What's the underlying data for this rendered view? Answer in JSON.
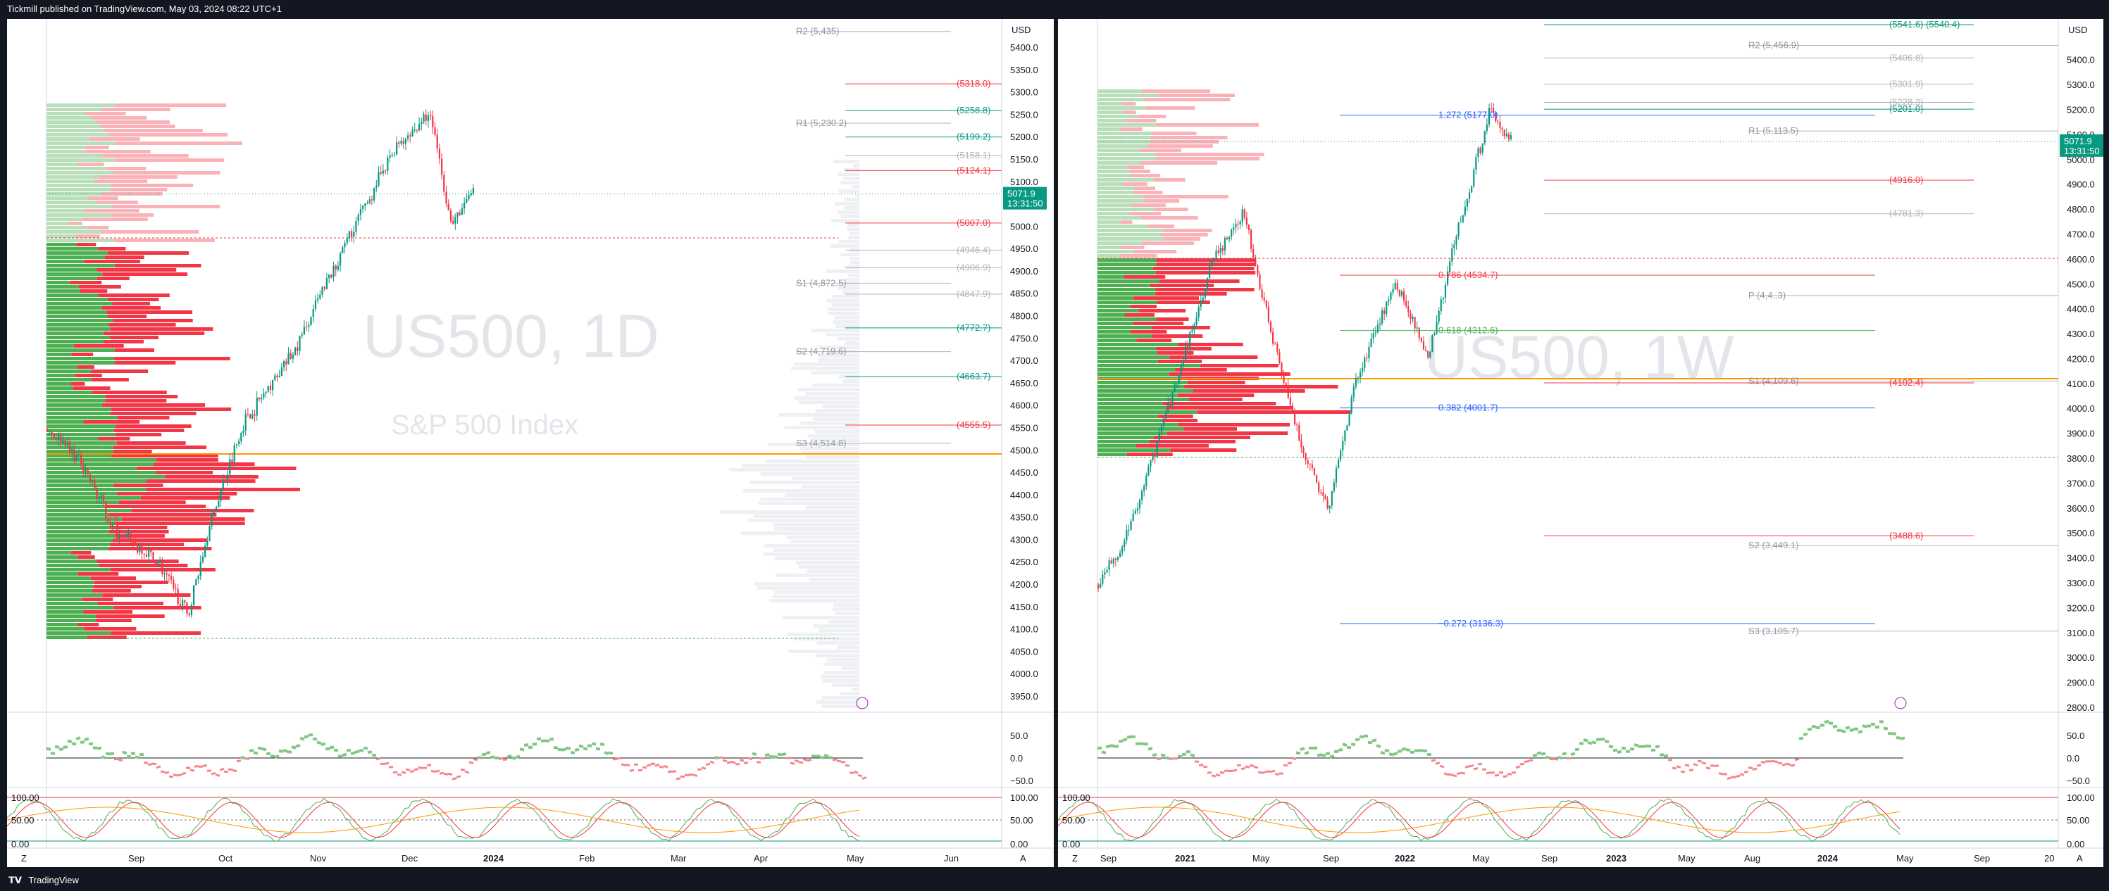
{
  "header": {
    "text": "Tickmill published on TradingView.com, May 03, 2024 08:22 UTC+1"
  },
  "footer": {
    "brand": "TradingView"
  },
  "colors": {
    "up": "#4caf50",
    "down": "#f23645",
    "blue": "#2962ff",
    "orange": "#ff9800",
    "lastprice": "#089981"
  },
  "left_chart": {
    "watermark": "US500, 1D",
    "watermark_sub": "S&P 500 Index",
    "currency": "USD",
    "price_label": "5071.9",
    "countdown": "13:31:50",
    "y_ticks": [
      "5400.0",
      "5350.0",
      "5300.0",
      "5250.0",
      "5200.0",
      "5150.0",
      "5100.0",
      "5050.0",
      "5000.0",
      "4950.0",
      "4900.0",
      "4850.0",
      "4800.0",
      "4750.0",
      "4700.0",
      "4650.0",
      "4600.0",
      "4550.0",
      "4500.0",
      "4450.0",
      "4400.0",
      "4350.0",
      "4300.0",
      "4250.0",
      "4200.0",
      "4150.0",
      "4100.0",
      "4050.0",
      "4000.0",
      "3950.0"
    ],
    "x_ticks": [
      "Sep",
      "Oct",
      "Nov",
      "Dec",
      "2024",
      "Feb",
      "Mar",
      "Apr",
      "May",
      "Jun"
    ],
    "osc1_ticks": [
      "50.0",
      "0.0",
      "−50.0"
    ],
    "osc2_ticks": [
      "100.00",
      "50.00",
      "0.00"
    ],
    "pivots": [
      {
        "text": "R2 (5,435)",
        "price": 5435
      },
      {
        "text": "R1 (5,230.2)",
        "price": 5230.2
      },
      {
        "text": "S1 (4,872.5)",
        "price": 4872.5
      },
      {
        "text": "S2 (4,719.6)",
        "price": 4719.6
      },
      {
        "text": "S3 (4,514.8)",
        "price": 4514.8
      }
    ],
    "levels": [
      {
        "text": "(5318.0)",
        "price": 5318,
        "color": "#f23645"
      },
      {
        "text": "(5258.8)",
        "price": 5258.8,
        "color": "#089981"
      },
      {
        "text": "(5199.2)",
        "price": 5199.2,
        "color": "#089981"
      },
      {
        "text": "(5158.1)",
        "price": 5158.1,
        "color": "#b2b5be"
      },
      {
        "text": "(5124.1)",
        "price": 5124.1,
        "color": "#f23645"
      },
      {
        "text": "(5007.0)",
        "price": 5007,
        "color": "#f23645"
      },
      {
        "text": "(4946.4)",
        "price": 4946.4,
        "color": "#b2b5be"
      },
      {
        "text": "(4906.9)",
        "price": 4906.9,
        "color": "#b2b5be"
      },
      {
        "text": "(4847.9)",
        "price": 4847.9,
        "color": "#b2b5be"
      },
      {
        "text": "(4772.7)",
        "price": 4772.7,
        "color": "#089981"
      },
      {
        "text": "(4663.7)",
        "price": 4663.7,
        "color": "#089981"
      },
      {
        "text": "(4555.5)",
        "price": 4555.5,
        "color": "#f23645"
      }
    ]
  },
  "right_chart": {
    "watermark": "US500, 1W",
    "currency": "USD",
    "price_label": "5071.9",
    "countdown": "13:31:50",
    "y_ticks": [
      "5400.0",
      "5300.0",
      "5200.0",
      "5100.0",
      "5000.0",
      "4900.0",
      "4800.0",
      "4700.0",
      "4600.0",
      "4500.0",
      "4400.0",
      "4300.0",
      "4200.0",
      "4100.0",
      "4000.0",
      "3900.0",
      "3800.0",
      "3700.0",
      "3600.0",
      "3500.0",
      "3400.0",
      "3300.0",
      "3200.0",
      "3100.0",
      "3000.0",
      "2900.0",
      "2800.0"
    ],
    "x_ticks": [
      "Sep",
      "2021",
      "May",
      "Sep",
      "2022",
      "May",
      "Sep",
      "2023",
      "May",
      "Aug",
      "2024",
      "May",
      "Sep",
      "20"
    ],
    "osc1_ticks": [
      "50.0",
      "0.0",
      "−50.0"
    ],
    "osc2_ticks": [
      "100.00",
      "50.00",
      "0.00"
    ],
    "pivots": [
      {
        "text": "R2 (5,456.9)",
        "price": 5456.9
      },
      {
        "text": "R1 (5,113.5)",
        "price": 5113.5
      },
      {
        "text": "P (4,4..3)",
        "price": 4453
      },
      {
        "text": "S1 (4,109.6)",
        "price": 4109.6
      },
      {
        "text": "S2 (3,449.1)",
        "price": 3449.1
      },
      {
        "text": "S3 (3,105.7)",
        "price": 3105.7
      }
    ],
    "levels": [
      {
        "text": "(5541.6) (5540.4)",
        "price": 5540.4,
        "color": "#089981"
      },
      {
        "text": "(5406.8)",
        "price": 5406.8,
        "color": "#b2b5be"
      },
      {
        "text": "(5301.9)",
        "price": 5301.9,
        "color": "#b2b5be"
      },
      {
        "text": "(5228.3)",
        "price": 5228.3,
        "color": "#b2b5be"
      },
      {
        "text": "(5201.0)",
        "price": 5201,
        "color": "#089981"
      },
      {
        "text": "(4916.0)",
        "price": 4916,
        "color": "#f23645"
      },
      {
        "text": "(4781.3)",
        "price": 4781.3,
        "color": "#b2b5be"
      },
      {
        "text": "(4102.4)",
        "price": 4102.4,
        "color": "#f23645"
      },
      {
        "text": "(3488.6)",
        "price": 3488.6,
        "color": "#f23645"
      }
    ],
    "fibs": [
      {
        "text": "1.272 (5177.0)",
        "price": 5177,
        "color": "#2962ff"
      },
      {
        "text": "0.786 (4534.7)",
        "price": 4534.7,
        "color": "#f23645"
      },
      {
        "text": "0.618 (4312.6)",
        "price": 4312.6,
        "color": "#4caf50"
      },
      {
        "text": "0.382 (4001.7)",
        "price": 4001.7,
        "color": "#2962ff"
      },
      {
        "text": "−0.272 (3136.3)",
        "price": 3136.3,
        "color": "#2962ff"
      }
    ]
  }
}
